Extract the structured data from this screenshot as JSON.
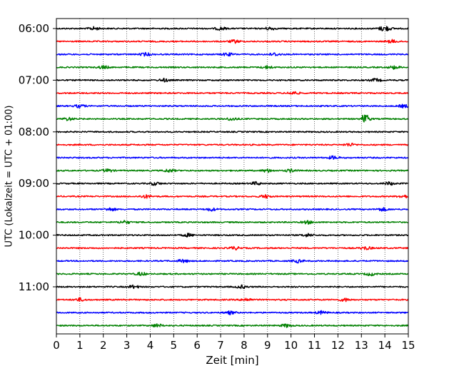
{
  "chart_data": {
    "type": "line",
    "title": "",
    "xlabel": "Zeit  [min]",
    "ylabel": "UTC (Lokalzeit = UTC + 01:00)",
    "xlim": [
      0,
      15
    ],
    "x_ticks": [
      0,
      1,
      2,
      3,
      4,
      5,
      6,
      7,
      8,
      9,
      10,
      11,
      12,
      13,
      14,
      15
    ],
    "x_tick_labels": [
      "0",
      "1",
      "2",
      "3",
      "4",
      "5",
      "6",
      "7",
      "8",
      "9",
      "10",
      "11",
      "12",
      "13",
      "14",
      "15"
    ],
    "y_ticks": [
      {
        "time": "06:00",
        "label": "06:00"
      },
      {
        "time": "07:00",
        "label": "07:00"
      },
      {
        "time": "08:00",
        "label": "08:00"
      },
      {
        "time": "09:00",
        "label": "09:00"
      },
      {
        "time": "10:00",
        "label": "10:00"
      },
      {
        "time": "11:00",
        "label": "11:00"
      }
    ],
    "grid": {
      "vertical": true,
      "style": "dotted"
    },
    "color_cycle": [
      "#000000",
      "#ff0000",
      "#0000ff",
      "#008000"
    ],
    "traces": [
      {
        "start": "06:00",
        "color": "#000000",
        "events": [
          1.6,
          7.0,
          9.1,
          13.9,
          14.1
        ]
      },
      {
        "start": "06:15",
        "color": "#ff0000",
        "events": [
          7.6,
          14.3
        ]
      },
      {
        "start": "06:30",
        "color": "#0000ff",
        "events": [
          3.8,
          7.3,
          9.3
        ]
      },
      {
        "start": "06:45",
        "color": "#008000",
        "events": [
          2.0,
          9.0,
          14.4
        ]
      },
      {
        "start": "07:00",
        "color": "#000000",
        "events": [
          4.6,
          13.6
        ]
      },
      {
        "start": "07:15",
        "color": "#ff0000",
        "events": [
          10.1
        ]
      },
      {
        "start": "07:30",
        "color": "#0000ff",
        "events": [
          1.0,
          14.8
        ]
      },
      {
        "start": "07:45",
        "color": "#008000",
        "events": [
          0.5,
          7.5,
          13.2
        ]
      },
      {
        "start": "08:00",
        "color": "#000000",
        "events": []
      },
      {
        "start": "08:15",
        "color": "#ff0000",
        "events": [
          12.5
        ]
      },
      {
        "start": "08:30",
        "color": "#0000ff",
        "events": [
          11.8
        ]
      },
      {
        "start": "08:45",
        "color": "#008000",
        "events": [
          2.2,
          4.8,
          9.0,
          10.0
        ]
      },
      {
        "start": "09:00",
        "color": "#000000",
        "events": [
          4.2,
          8.5,
          14.2
        ]
      },
      {
        "start": "09:15",
        "color": "#ff0000",
        "events": [
          3.8,
          8.9,
          14.8
        ]
      },
      {
        "start": "09:30",
        "color": "#0000ff",
        "events": [
          2.3,
          6.6,
          13.9
        ]
      },
      {
        "start": "09:45",
        "color": "#008000",
        "events": [
          2.9,
          10.7
        ]
      },
      {
        "start": "10:00",
        "color": "#000000",
        "events": [
          5.6,
          10.7
        ]
      },
      {
        "start": "10:15",
        "color": "#ff0000",
        "events": [
          7.6,
          13.2
        ]
      },
      {
        "start": "10:30",
        "color": "#0000ff",
        "events": [
          5.4,
          10.3
        ]
      },
      {
        "start": "10:45",
        "color": "#008000",
        "events": [
          3.6,
          13.4
        ]
      },
      {
        "start": "11:00",
        "color": "#000000",
        "events": [
          3.3,
          7.9
        ]
      },
      {
        "start": "11:15",
        "color": "#ff0000",
        "events": [
          1.0,
          8.1,
          12.3
        ]
      },
      {
        "start": "11:30",
        "color": "#0000ff",
        "events": [
          7.4,
          11.3
        ]
      },
      {
        "start": "11:45",
        "color": "#008000",
        "events": [
          4.3,
          9.8
        ]
      }
    ]
  }
}
